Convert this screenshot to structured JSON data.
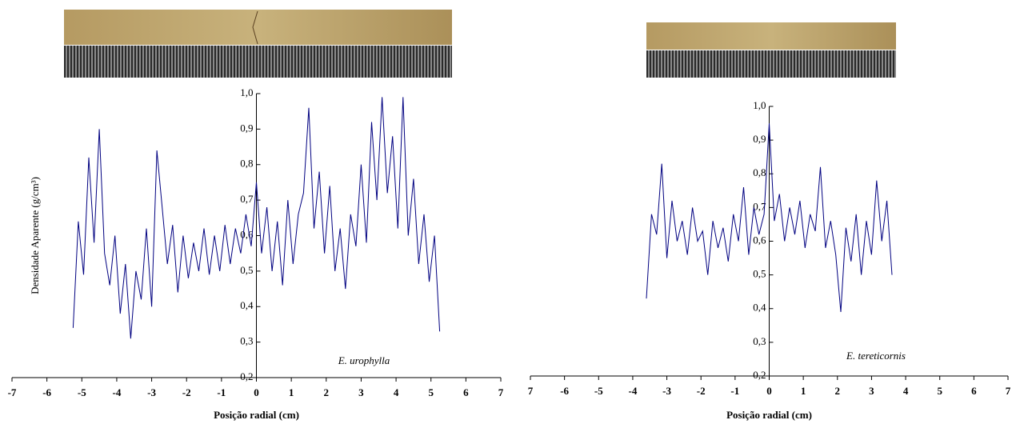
{
  "chart_data": [
    {
      "type": "line",
      "color": "#000080",
      "y_label": "Densidade Aparente (g/cm³)",
      "x_label": "Posição radial (cm)",
      "annotation": "E. urophylla",
      "xlim": [
        -7,
        7
      ],
      "xticks": [
        -7,
        -6,
        -5,
        -4,
        -3,
        -2,
        -1,
        0,
        1,
        2,
        3,
        4,
        5,
        6,
        7
      ],
      "ylim": [
        0.2,
        1.0
      ],
      "yticks": [
        {
          "value": 0.2,
          "label": "0,2"
        },
        {
          "value": 0.3,
          "label": "0,3"
        },
        {
          "value": 0.4,
          "label": "0,4"
        },
        {
          "value": 0.5,
          "label": "0,5"
        },
        {
          "value": 0.6,
          "label": "0,6"
        },
        {
          "value": 0.7,
          "label": "0,7"
        },
        {
          "value": 0.8,
          "label": "0,8"
        },
        {
          "value": 0.9,
          "label": "0,9"
        },
        {
          "value": 1.0,
          "label": "1,0"
        }
      ],
      "x": [
        -5.25,
        -5.1,
        -4.95,
        -4.8,
        -4.65,
        -4.5,
        -4.35,
        -4.2,
        -4.05,
        -3.9,
        -3.75,
        -3.6,
        -3.45,
        -3.3,
        -3.15,
        -3.0,
        -2.85,
        -2.7,
        -2.55,
        -2.4,
        -2.25,
        -2.1,
        -1.95,
        -1.8,
        -1.65,
        -1.5,
        -1.35,
        -1.2,
        -1.05,
        -0.9,
        -0.75,
        -0.6,
        -0.45,
        -0.3,
        -0.15,
        0,
        0.15,
        0.3,
        0.45,
        0.6,
        0.75,
        0.9,
        1.05,
        1.2,
        1.35,
        1.5,
        1.65,
        1.8,
        1.95,
        2.1,
        2.25,
        2.4,
        2.55,
        2.7,
        2.85,
        3.0,
        3.15,
        3.3,
        3.45,
        3.6,
        3.75,
        3.9,
        4.05,
        4.2,
        4.35,
        4.5,
        4.65,
        4.8,
        4.95,
        5.1,
        5.25
      ],
      "values": [
        0.34,
        0.64,
        0.49,
        0.82,
        0.58,
        0.9,
        0.55,
        0.46,
        0.6,
        0.38,
        0.52,
        0.31,
        0.5,
        0.42,
        0.62,
        0.4,
        0.84,
        0.68,
        0.52,
        0.63,
        0.44,
        0.6,
        0.48,
        0.58,
        0.5,
        0.62,
        0.49,
        0.6,
        0.5,
        0.63,
        0.52,
        0.62,
        0.55,
        0.66,
        0.57,
        0.75,
        0.55,
        0.68,
        0.5,
        0.64,
        0.46,
        0.7,
        0.52,
        0.66,
        0.72,
        0.96,
        0.62,
        0.78,
        0.55,
        0.74,
        0.5,
        0.62,
        0.45,
        0.66,
        0.57,
        0.8,
        0.58,
        0.92,
        0.7,
        0.99,
        0.72,
        0.88,
        0.62,
        0.99,
        0.6,
        0.76,
        0.52,
        0.66,
        0.47,
        0.6,
        0.33
      ]
    },
    {
      "type": "line",
      "color": "#000080",
      "x_label": "Posição radial (cm)",
      "annotation": "E. tereticornis",
      "xlim": [
        -7,
        7
      ],
      "xticks": [
        {
          "value": -7,
          "label": "7"
        },
        -6,
        -5,
        -4,
        -3,
        -2,
        -1,
        0,
        1,
        2,
        3,
        4,
        5,
        6,
        7
      ],
      "ylim": [
        0.2,
        1.0
      ],
      "yticks": [
        {
          "value": 0.2,
          "label": "0,2"
        },
        {
          "value": 0.3,
          "label": "0,3"
        },
        {
          "value": 0.4,
          "label": "0,4"
        },
        {
          "value": 0.5,
          "label": "0,5"
        },
        {
          "value": 0.6,
          "label": "0,6"
        },
        {
          "value": 0.7,
          "label": "0,7"
        },
        {
          "value": 0.8,
          "label": "0,8"
        },
        {
          "value": 0.9,
          "label": "0,9"
        },
        {
          "value": 1.0,
          "label": "1,0"
        }
      ],
      "x": [
        -3.6,
        -3.45,
        -3.3,
        -3.15,
        -3.0,
        -2.85,
        -2.7,
        -2.55,
        -2.4,
        -2.25,
        -2.1,
        -1.95,
        -1.8,
        -1.65,
        -1.5,
        -1.35,
        -1.2,
        -1.05,
        -0.9,
        -0.75,
        -0.6,
        -0.45,
        -0.3,
        -0.15,
        0,
        0.15,
        0.3,
        0.45,
        0.6,
        0.75,
        0.9,
        1.05,
        1.2,
        1.35,
        1.5,
        1.65,
        1.8,
        1.95,
        2.1,
        2.25,
        2.4,
        2.55,
        2.7,
        2.85,
        3.0,
        3.15,
        3.3,
        3.45,
        3.6
      ],
      "values": [
        0.43,
        0.68,
        0.62,
        0.83,
        0.55,
        0.72,
        0.6,
        0.66,
        0.56,
        0.7,
        0.6,
        0.63,
        0.5,
        0.66,
        0.58,
        0.64,
        0.54,
        0.68,
        0.6,
        0.76,
        0.56,
        0.7,
        0.62,
        0.68,
        0.95,
        0.66,
        0.74,
        0.6,
        0.7,
        0.62,
        0.72,
        0.58,
        0.68,
        0.63,
        0.82,
        0.58,
        0.66,
        0.56,
        0.39,
        0.64,
        0.54,
        0.68,
        0.5,
        0.66,
        0.56,
        0.78,
        0.6,
        0.72,
        0.5
      ]
    }
  ]
}
